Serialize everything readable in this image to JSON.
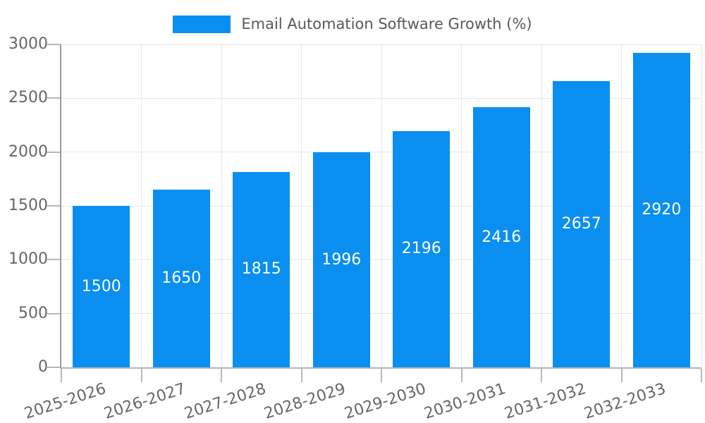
{
  "chart_data": {
    "type": "bar",
    "title": "Email Automation Software Growth (%)",
    "legend": {
      "position": "top",
      "entries": [
        {
          "label": "Email Automation Software Growth (%)",
          "color": "#0a8ff1"
        }
      ]
    },
    "categories": [
      "2025-2026",
      "2026-2027",
      "2027-2028",
      "2028-2029",
      "2029-2030",
      "2030-2031",
      "2031-2032",
      "2032-2033"
    ],
    "series": [
      {
        "name": "Email Automation Software Growth (%)",
        "values": [
          1500,
          1650,
          1815,
          1996,
          2196,
          2416,
          2657,
          2920
        ]
      }
    ],
    "value_labels": [
      "1500",
      "1650",
      "1815",
      "1996",
      "2196",
      "2416",
      "2657",
      "2920"
    ],
    "xlabel": "",
    "ylabel": "",
    "ylim": [
      0,
      3000
    ],
    "yticks": [
      0,
      500,
      1000,
      1500,
      2000,
      2500,
      3000
    ],
    "ytick_labels": [
      "0",
      "500",
      "1000",
      "1500",
      "2000",
      "2500",
      "3000"
    ],
    "grid": true,
    "x_tick_rotation_deg": -18
  },
  "colors": {
    "bar": "#0a8ff1",
    "value_text": "#ffffff",
    "grid_line": "#e5e5e5",
    "y_axis_line": "#9a9a9a",
    "x_axis_line": "#b3b3b3",
    "tick_mark": "#b8b8b8",
    "tick_text": "#666666",
    "title_text": "#58595b"
  }
}
